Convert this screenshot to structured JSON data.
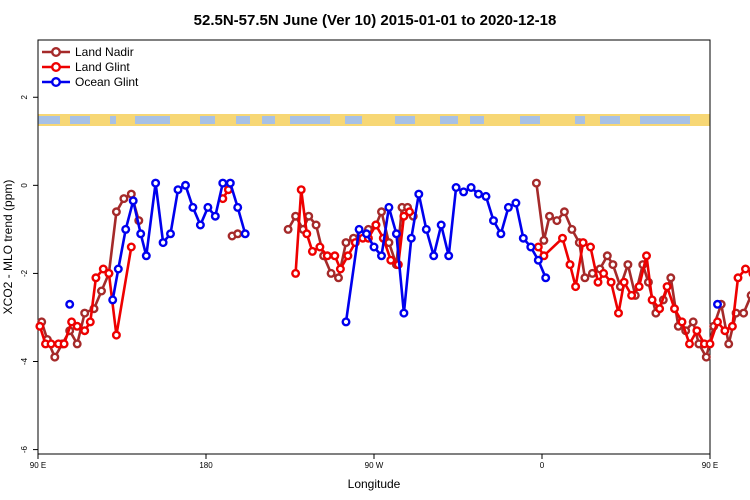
{
  "chart_data": {
    "type": "line",
    "title": "52.5N-57.5N June (Ver 10)   2015-01-01 to 2020-12-18",
    "xlabel": "Longitude",
    "ylabel": "XCO2 - MLO trend (ppm)",
    "xlim": [
      90,
      450
    ],
    "ylim": [
      -6.1,
      3.3
    ],
    "x_ticks": [
      {
        "value": 90,
        "label": "90 E"
      },
      {
        "value": 180,
        "label": "180"
      },
      {
        "value": 270,
        "label": "90 W"
      },
      {
        "value": 360,
        "label": "0"
      },
      {
        "value": 450,
        "label": "90 E"
      },
      {
        "value": 540,
        "label": "180"
      }
    ],
    "y_ticks": [
      {
        "value": 2,
        "label": "2"
      },
      {
        "value": 0,
        "label": "0"
      },
      {
        "value": -2,
        "label": "-2"
      },
      {
        "value": -4,
        "label": "-4"
      },
      {
        "value": -6,
        "label": "-6"
      }
    ],
    "grid": false,
    "legend_position": "top-left",
    "series": [
      {
        "name": "Land Nadir",
        "color": "#a52a2a",
        "points": [
          [
            92,
            -3.1
          ],
          [
            95,
            -3.5
          ],
          [
            99,
            -3.9
          ],
          [
            103,
            -3.6
          ],
          [
            107,
            -3.3
          ],
          [
            111,
            -3.6
          ],
          [
            115,
            -2.9
          ],
          [
            120,
            -2.8
          ],
          [
            124,
            -2.4
          ],
          [
            128,
            -2.0
          ],
          [
            132,
            -0.6
          ],
          [
            136,
            -0.3
          ],
          [
            140,
            -0.2
          ],
          [
            144,
            -0.8
          ],
          [
            194,
            -1.15
          ],
          [
            197,
            -1.1
          ],
          [
            224,
            -1.0
          ],
          [
            228,
            -0.7
          ],
          [
            232,
            -1.0
          ],
          [
            235,
            -0.7
          ],
          [
            239,
            -0.9
          ],
          [
            243,
            -1.6
          ],
          [
            247,
            -2.0
          ],
          [
            251,
            -2.1
          ],
          [
            255,
            -1.3
          ],
          [
            259,
            -1.2
          ],
          [
            263,
            -1.1
          ],
          [
            267,
            -1.0
          ],
          [
            271,
            -0.9
          ],
          [
            274,
            -0.6
          ],
          [
            278,
            -1.3
          ],
          [
            282,
            -1.8
          ],
          [
            285,
            -0.5
          ],
          [
            288,
            -0.5
          ],
          [
            291,
            -0.7
          ],
          [
            357,
            0.05
          ],
          [
            361,
            -1.25
          ],
          [
            364,
            -0.7
          ],
          [
            368,
            -0.8
          ],
          [
            372,
            -0.6
          ],
          [
            376,
            -1.0
          ],
          [
            380,
            -1.3
          ],
          [
            383,
            -2.1
          ],
          [
            387,
            -2.0
          ],
          [
            391,
            -1.9
          ],
          [
            395,
            -1.6
          ],
          [
            398,
            -1.8
          ],
          [
            402,
            -2.3
          ],
          [
            406,
            -1.8
          ],
          [
            410,
            -2.5
          ],
          [
            414,
            -1.8
          ],
          [
            417,
            -2.2
          ],
          [
            421,
            -2.9
          ],
          [
            425,
            -2.6
          ],
          [
            429,
            -2.1
          ],
          [
            433,
            -3.2
          ],
          [
            437,
            -3.3
          ],
          [
            441,
            -3.1
          ],
          [
            444,
            -3.6
          ],
          [
            448,
            -3.9
          ],
          [
            452,
            -3.2
          ],
          [
            456,
            -2.7
          ],
          [
            460,
            -3.6
          ],
          [
            464,
            -2.9
          ],
          [
            468,
            -2.9
          ],
          [
            472,
            -2.5
          ],
          [
            475,
            -2.3
          ],
          [
            479,
            -0.6
          ],
          [
            483,
            -0.3
          ],
          [
            487,
            -0.2
          ],
          [
            491,
            -0.8
          ]
        ]
      },
      {
        "name": "Land Glint",
        "color": "#ee0000",
        "points": [
          [
            91,
            -3.2
          ],
          [
            94,
            -3.6
          ],
          [
            97,
            -3.6
          ],
          [
            101,
            -3.6
          ],
          [
            104,
            -3.6
          ],
          [
            108,
            -3.1
          ],
          [
            111,
            -3.2
          ],
          [
            115,
            -3.3
          ],
          [
            118,
            -3.1
          ],
          [
            121,
            -2.1
          ],
          [
            125,
            -1.9
          ],
          [
            128,
            -2.0
          ],
          [
            132,
            -3.4
          ],
          [
            140,
            -1.4
          ],
          [
            189,
            -0.3
          ],
          [
            192,
            -0.1
          ],
          [
            228,
            -2.0
          ],
          [
            231,
            -0.1
          ],
          [
            234,
            -1.1
          ],
          [
            237,
            -1.5
          ],
          [
            241,
            -1.4
          ],
          [
            245,
            -1.6
          ],
          [
            249,
            -1.6
          ],
          [
            252,
            -1.9
          ],
          [
            256,
            -1.6
          ],
          [
            260,
            -1.3
          ],
          [
            264,
            -1.2
          ],
          [
            267,
            -1.2
          ],
          [
            271,
            -0.9
          ],
          [
            275,
            -1.2
          ],
          [
            279,
            -1.7
          ],
          [
            283,
            -1.8
          ],
          [
            286,
            -0.7
          ],
          [
            289,
            -0.6
          ],
          [
            358,
            -1.4
          ],
          [
            361,
            -1.6
          ],
          [
            371,
            -1.2
          ],
          [
            375,
            -1.8
          ],
          [
            378,
            -2.3
          ],
          [
            382,
            -1.3
          ],
          [
            386,
            -1.4
          ],
          [
            390,
            -2.2
          ],
          [
            393,
            -2.0
          ],
          [
            397,
            -2.2
          ],
          [
            401,
            -2.9
          ],
          [
            404,
            -2.2
          ],
          [
            408,
            -2.5
          ],
          [
            412,
            -2.3
          ],
          [
            416,
            -1.6
          ],
          [
            419,
            -2.6
          ],
          [
            423,
            -2.8
          ],
          [
            427,
            -2.3
          ],
          [
            431,
            -2.8
          ],
          [
            435,
            -3.1
          ],
          [
            439,
            -3.6
          ],
          [
            443,
            -3.3
          ],
          [
            447,
            -3.6
          ],
          [
            450,
            -3.6
          ],
          [
            454,
            -3.1
          ],
          [
            458,
            -3.3
          ],
          [
            462,
            -3.2
          ],
          [
            465,
            -2.1
          ],
          [
            469,
            -1.9
          ],
          [
            473,
            -2.0
          ],
          [
            477,
            -1.4
          ],
          [
            481,
            -3.4
          ]
        ]
      },
      {
        "name": "Ocean Glint",
        "color": "#0000ee",
        "points": [
          [
            107,
            -2.7
          ],
          [
            130,
            -2.6
          ],
          [
            133,
            -1.9
          ],
          [
            137,
            -1.0
          ],
          [
            141,
            -0.35
          ],
          [
            145,
            -1.1
          ],
          [
            148,
            -1.6
          ],
          [
            153,
            0.05
          ],
          [
            157,
            -1.3
          ],
          [
            161,
            -1.1
          ],
          [
            165,
            -0.1
          ],
          [
            169,
            0.0
          ],
          [
            173,
            -0.5
          ],
          [
            177,
            -0.9
          ],
          [
            181,
            -0.5
          ],
          [
            185,
            -0.7
          ],
          [
            189,
            0.05
          ],
          [
            193,
            0.05
          ],
          [
            197,
            -0.5
          ],
          [
            201,
            -1.1
          ],
          [
            255,
            -3.1
          ],
          [
            262,
            -1.0
          ],
          [
            266,
            -1.1
          ],
          [
            270,
            -1.4
          ],
          [
            274,
            -1.6
          ],
          [
            278,
            -0.5
          ],
          [
            282,
            -1.1
          ],
          [
            286,
            -2.9
          ],
          [
            290,
            -1.2
          ],
          [
            294,
            -0.2
          ],
          [
            298,
            -1.0
          ],
          [
            302,
            -1.6
          ],
          [
            306,
            -0.9
          ],
          [
            310,
            -1.6
          ],
          [
            314,
            -0.05
          ],
          [
            318,
            -0.15
          ],
          [
            322,
            -0.05
          ],
          [
            326,
            -0.2
          ],
          [
            330,
            -0.25
          ],
          [
            334,
            -0.8
          ],
          [
            338,
            -1.1
          ],
          [
            342,
            -0.5
          ],
          [
            346,
            -0.4
          ],
          [
            350,
            -1.2
          ],
          [
            354,
            -1.4
          ],
          [
            358,
            -1.7
          ],
          [
            362,
            -2.1
          ],
          [
            454,
            -2.7
          ]
        ]
      }
    ],
    "land_mask_color": "#f7d775",
    "ocean_mask_color": "#a7c1e6"
  }
}
